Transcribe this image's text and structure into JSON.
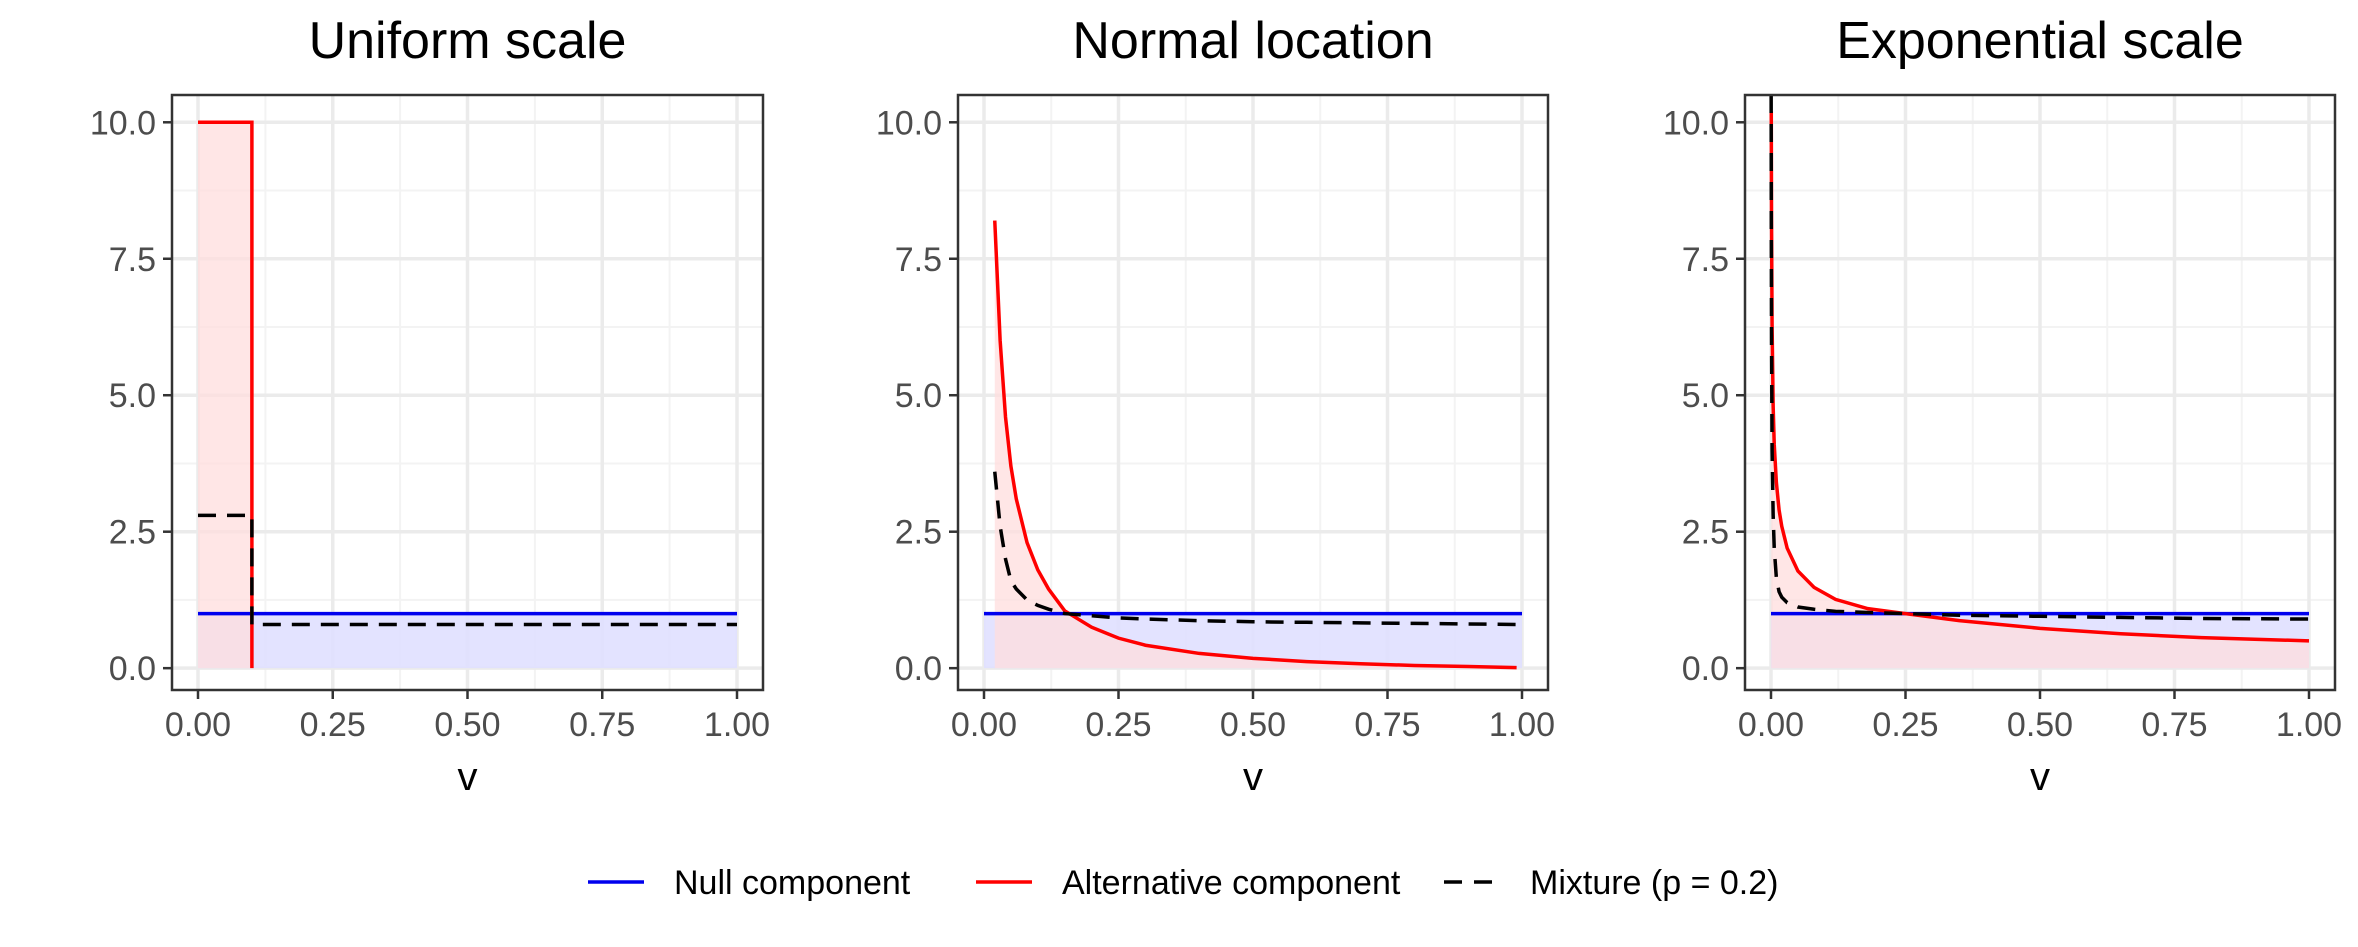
{
  "colors": {
    "null": "#0000ee",
    "alternative": "#ff0000",
    "mixture": "#000000",
    "null_fill": "#e0e0ff",
    "alt_fill": "#ffdddd",
    "grid_major": "#ebebeb",
    "grid_minor": "#f3f3f3",
    "panel_border": "#333333"
  },
  "legend": {
    "items": [
      {
        "label": "Null component",
        "style": "solid",
        "color_key": "null"
      },
      {
        "label": "Alternative component",
        "style": "solid",
        "color_key": "alternative"
      },
      {
        "label": "Mixture (p = 0.2)",
        "style": "dashed",
        "color_key": "mixture"
      }
    ]
  },
  "chart_data": [
    {
      "type": "line",
      "title": "Uniform scale",
      "xlabel": "v",
      "ylabel": "",
      "xlim": [
        0,
        1
      ],
      "ylim": [
        -0.4,
        10.5
      ],
      "xticks": [
        "0.00",
        "0.25",
        "0.50",
        "0.75",
        "1.00"
      ],
      "yticks": [
        "0.0",
        "2.5",
        "5.0",
        "7.5",
        "10.0"
      ],
      "xtick_values": [
        0,
        0.25,
        0.5,
        0.75,
        1
      ],
      "ytick_values": [
        0,
        2.5,
        5,
        7.5,
        10
      ],
      "grid": true,
      "series": [
        {
          "name": "Null component",
          "x": [
            0,
            1
          ],
          "y": [
            1,
            1
          ]
        },
        {
          "name": "Alternative component",
          "x": [
            0,
            0.1,
            0.1,
            0.1
          ],
          "y": [
            10,
            10,
            0,
            0
          ]
        },
        {
          "name": "Mixture (p = 0.2)",
          "x": [
            0,
            0.1,
            0.1,
            1
          ],
          "y": [
            2.8,
            2.8,
            0.8,
            0.8
          ]
        }
      ]
    },
    {
      "type": "line",
      "title": "Normal location",
      "xlabel": "v",
      "ylabel": "",
      "xlim": [
        0,
        1
      ],
      "ylim": [
        -0.4,
        10.5
      ],
      "xticks": [
        "0.00",
        "0.25",
        "0.50",
        "0.75",
        "1.00"
      ],
      "yticks": [
        "0.0",
        "2.5",
        "5.0",
        "7.5",
        "10.0"
      ],
      "xtick_values": [
        0,
        0.25,
        0.5,
        0.75,
        1
      ],
      "ytick_values": [
        0,
        2.5,
        5,
        7.5,
        10
      ],
      "grid": true,
      "series": [
        {
          "name": "Null component",
          "x": [
            0,
            1
          ],
          "y": [
            1,
            1
          ]
        },
        {
          "name": "Alternative component",
          "x": [
            0.02,
            0.03,
            0.04,
            0.05,
            0.06,
            0.08,
            0.1,
            0.12,
            0.15,
            0.2,
            0.25,
            0.3,
            0.4,
            0.5,
            0.6,
            0.7,
            0.8,
            0.9,
            0.99
          ],
          "y": [
            8.2,
            6.0,
            4.6,
            3.7,
            3.1,
            2.3,
            1.8,
            1.45,
            1.05,
            0.75,
            0.55,
            0.42,
            0.27,
            0.18,
            0.12,
            0.08,
            0.05,
            0.03,
            0.01
          ]
        },
        {
          "name": "Mixture (p = 0.2)",
          "x": [
            0.02,
            0.03,
            0.04,
            0.05,
            0.06,
            0.08,
            0.1,
            0.12,
            0.15,
            0.2,
            0.25,
            0.3,
            0.4,
            0.5,
            0.6,
            0.7,
            0.8,
            0.9,
            0.99
          ],
          "y": [
            3.6,
            2.6,
            2.0,
            1.6,
            1.45,
            1.25,
            1.15,
            1.08,
            1.0,
            0.96,
            0.92,
            0.9,
            0.87,
            0.85,
            0.84,
            0.83,
            0.82,
            0.81,
            0.8
          ]
        }
      ]
    },
    {
      "type": "line",
      "title": "Exponential scale",
      "xlabel": "v",
      "ylabel": "",
      "xlim": [
        0,
        1
      ],
      "ylim": [
        -0.4,
        10.5
      ],
      "xticks": [
        "0.00",
        "0.25",
        "0.50",
        "0.75",
        "1.00"
      ],
      "yticks": [
        "0.0",
        "2.5",
        "5.0",
        "7.5",
        "10.0"
      ],
      "xtick_values": [
        0,
        0.25,
        0.5,
        0.75,
        1
      ],
      "ytick_values": [
        0,
        2.5,
        5,
        7.5,
        10
      ],
      "grid": true,
      "series": [
        {
          "name": "Null component",
          "x": [
            0,
            1
          ],
          "y": [
            1,
            1
          ]
        },
        {
          "name": "Alternative component",
          "x": [
            0.0005,
            0.001,
            0.002,
            0.004,
            0.006,
            0.01,
            0.015,
            0.02,
            0.03,
            0.05,
            0.08,
            0.12,
            0.18,
            0.25,
            0.35,
            0.5,
            0.65,
            0.8,
            1.0
          ],
          "y": [
            10.2,
            8.2,
            6.3,
            4.8,
            4.1,
            3.4,
            2.9,
            2.6,
            2.2,
            1.78,
            1.48,
            1.26,
            1.09,
            1.0,
            0.87,
            0.73,
            0.63,
            0.56,
            0.5
          ]
        },
        {
          "name": "Mixture (p = 0.2)",
          "x": [
            0.0003,
            0.0006,
            0.001,
            0.002,
            0.004,
            0.006,
            0.01,
            0.015,
            0.02,
            0.03,
            0.05,
            0.08,
            0.12,
            0.18,
            0.25,
            0.35,
            0.5,
            0.65,
            0.8,
            1.0
          ],
          "y": [
            10.5,
            8.0,
            6.0,
            4.0,
            2.8,
            2.2,
            1.65,
            1.4,
            1.3,
            1.2,
            1.12,
            1.08,
            1.04,
            1.02,
            1.0,
            0.97,
            0.95,
            0.93,
            0.91,
            0.9
          ]
        }
      ]
    }
  ]
}
